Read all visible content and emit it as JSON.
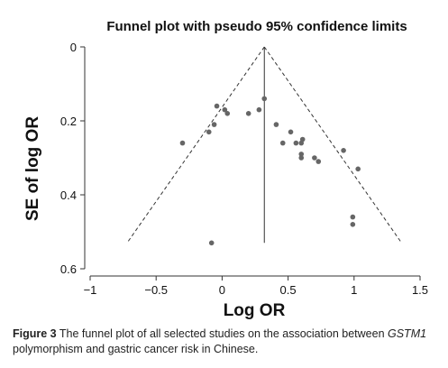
{
  "chart_data": {
    "type": "scatter",
    "title": "Funnel plot with pseudo 95% confidence limits",
    "xlabel": "Log OR",
    "ylabel": "SE of log OR",
    "xlim": [
      -1,
      1.5
    ],
    "ylim": [
      0,
      0.6
    ],
    "y_reversed": true,
    "x_ticks": [
      -1,
      -0.5,
      0,
      0.5,
      1,
      1.5
    ],
    "x_tick_labels": [
      "−1",
      "−0.5",
      "0",
      "0.5",
      "1",
      "1.5"
    ],
    "y_ticks": [
      0,
      0.2,
      0.4,
      0.6
    ],
    "y_tick_labels": [
      "0",
      "0.2",
      "0.4",
      "0.6"
    ],
    "grid": false,
    "pooled_log_or": 0.32,
    "pseudo_ci_limits": {
      "apex": [
        0.32,
        0
      ],
      "left_end": [
        -0.72,
        0.53
      ],
      "right_end": [
        1.36,
        0.53
      ]
    },
    "points": [
      {
        "x": -0.04,
        "y": 0.16
      },
      {
        "x": 0.02,
        "y": 0.17
      },
      {
        "x": 0.04,
        "y": 0.18
      },
      {
        "x": 0.2,
        "y": 0.18
      },
      {
        "x": 0.28,
        "y": 0.17
      },
      {
        "x": 0.32,
        "y": 0.14
      },
      {
        "x": 0.41,
        "y": 0.21
      },
      {
        "x": -0.06,
        "y": 0.21
      },
      {
        "x": -0.1,
        "y": 0.23
      },
      {
        "x": -0.3,
        "y": 0.26
      },
      {
        "x": 0.52,
        "y": 0.23
      },
      {
        "x": 0.46,
        "y": 0.26
      },
      {
        "x": 0.56,
        "y": 0.26
      },
      {
        "x": 0.6,
        "y": 0.26
      },
      {
        "x": 0.61,
        "y": 0.25
      },
      {
        "x": 0.6,
        "y": 0.29
      },
      {
        "x": 0.6,
        "y": 0.3
      },
      {
        "x": 0.7,
        "y": 0.3
      },
      {
        "x": 0.73,
        "y": 0.31
      },
      {
        "x": 0.92,
        "y": 0.28
      },
      {
        "x": 1.03,
        "y": 0.33
      },
      {
        "x": 0.99,
        "y": 0.46
      },
      {
        "x": 0.99,
        "y": 0.48
      },
      {
        "x": -0.08,
        "y": 0.53
      }
    ]
  },
  "caption": {
    "label": "Figure 3",
    "text_before": " The funnel plot of all selected studies on the association between ",
    "gene": "GSTM1",
    "text_after": " polymorphism and gastric cancer risk in Chinese."
  },
  "colors": {
    "points": "#666666",
    "axis": "#333333",
    "lines": "#333333"
  }
}
